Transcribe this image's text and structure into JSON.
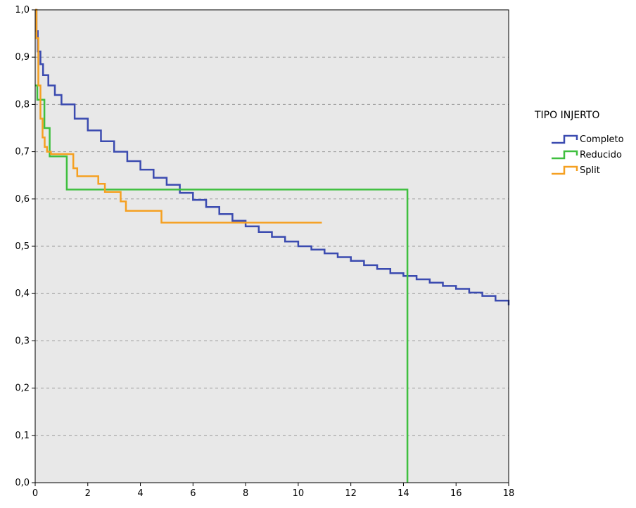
{
  "chart_data": {
    "type": "line",
    "step": true,
    "xlim": [
      0,
      18
    ],
    "ylim": [
      0,
      1
    ],
    "x_ticks": [
      0,
      2,
      4,
      6,
      8,
      10,
      12,
      14,
      16,
      18
    ],
    "x_tick_labels": [
      "0",
      "2",
      "4",
      "6",
      "8",
      "10",
      "12",
      "14",
      "16",
      "18"
    ],
    "y_ticks": [
      0.0,
      0.1,
      0.2,
      0.3,
      0.4,
      0.5,
      0.6,
      0.7,
      0.8,
      0.9,
      1.0
    ],
    "y_tick_labels": [
      "0,0",
      "0,1",
      "0,2",
      "0,3",
      "0,4",
      "0,5",
      "0,6",
      "0,7",
      "0,8",
      "0,9",
      "1,0"
    ],
    "grid": "horizontal dashed",
    "plot_background": "#e8e8e8",
    "legend": {
      "title": "TIPO INJERTO",
      "placement": "right"
    },
    "series": [
      {
        "name": "Completo",
        "color": "#3b4bb0",
        "x": [
          0,
          0.05,
          0.1,
          0.2,
          0.3,
          0.5,
          0.75,
          1,
          1.5,
          2,
          2.5,
          3,
          3.5,
          4,
          4.5,
          5,
          5.5,
          6,
          6.5,
          7,
          7.5,
          8,
          8.5,
          9,
          9.5,
          10,
          10.5,
          11,
          11.5,
          12,
          12.5,
          13,
          13.5,
          14,
          14.5,
          15,
          15.5,
          16,
          16.5,
          17,
          17.5,
          18
        ],
        "values": [
          1.0,
          0.955,
          0.912,
          0.885,
          0.862,
          0.84,
          0.82,
          0.8,
          0.77,
          0.745,
          0.722,
          0.7,
          0.68,
          0.662,
          0.645,
          0.63,
          0.613,
          0.598,
          0.583,
          0.568,
          0.554,
          0.542,
          0.53,
          0.52,
          0.51,
          0.5,
          0.493,
          0.485,
          0.477,
          0.469,
          0.46,
          0.452,
          0.443,
          0.437,
          0.43,
          0.423,
          0.416,
          0.41,
          0.402,
          0.395,
          0.385,
          0.375
        ]
      },
      {
        "name": "Reducido",
        "color": "#3fbf3f",
        "x": [
          0,
          0.08,
          0.35,
          0.55,
          1.2,
          14.15,
          14.15
        ],
        "values": [
          0.84,
          0.81,
          0.75,
          0.69,
          0.62,
          0.62,
          0.0
        ]
      },
      {
        "name": "Split",
        "color": "#f5a021",
        "x": [
          0,
          0.05,
          0.12,
          0.2,
          0.28,
          0.36,
          0.45,
          0.6,
          1.45,
          1.6,
          2.4,
          2.65,
          3.25,
          3.45,
          4.8,
          10.9
        ],
        "values": [
          1.0,
          0.94,
          0.84,
          0.77,
          0.73,
          0.71,
          0.7,
          0.695,
          0.665,
          0.648,
          0.632,
          0.615,
          0.595,
          0.575,
          0.55,
          0.55
        ]
      }
    ]
  }
}
